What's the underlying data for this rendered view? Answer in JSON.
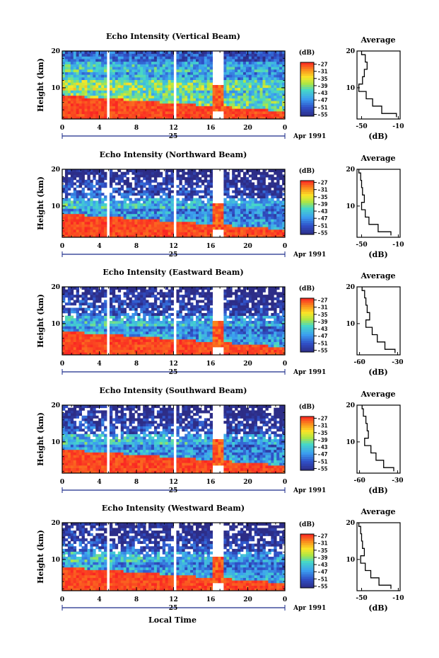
{
  "chart_data": {
    "type": "heatmap",
    "xlabel": "Local Time",
    "x_ticks": [
      "0",
      "4",
      "8",
      "12",
      "16",
      "20",
      "0"
    ],
    "date_day": "25",
    "date_month": "Apr 1991",
    "xlim": [
      0,
      24
    ],
    "ylabel": "Height (km)",
    "y_ticks": [
      "20",
      "10"
    ],
    "ylim": [
      1.5,
      20
    ],
    "colorbar_unit": "(dB)",
    "colorbar_ticks": [
      "-27",
      "-31",
      "-35",
      "-39",
      "-43",
      "-47",
      "-51",
      "-55"
    ],
    "colorbar_range_db": [
      -56,
      -26
    ],
    "avg_title": "Average",
    "avg_xlabel": "(dB)",
    "colors": {
      "max": "#ff2020",
      "min": "#303090",
      "grid": "#000000"
    },
    "panels": [
      {
        "title": "Echo Intensity (Vertical Beam)",
        "avg_x_ticks": [
          "-50",
          "-10"
        ],
        "avg_xlim": [
          -55,
          -8
        ],
        "avg_profile": {
          "height_km": [
            2,
            4,
            6,
            8,
            10,
            12,
            14,
            16,
            18,
            20
          ],
          "db": [
            -12,
            -28,
            -38,
            -45,
            -53,
            -49,
            -47,
            -44,
            -46,
            -50
          ]
        }
      },
      {
        "title": "Echo Intensity (Northward Beam)",
        "avg_x_ticks": [
          "-50",
          "-10"
        ],
        "avg_xlim": [
          -55,
          -8
        ],
        "avg_profile": {
          "height_km": [
            2,
            4,
            6,
            8,
            10,
            12,
            14,
            16,
            18,
            20
          ],
          "db": [
            -18,
            -32,
            -42,
            -46,
            -50,
            -47,
            -49,
            -50,
            -51,
            -53
          ]
        }
      },
      {
        "title": "Echo Intensity (Eastward Beam)",
        "avg_x_ticks": [
          "-60",
          "-30"
        ],
        "avg_xlim": [
          -62,
          -28
        ],
        "avg_profile": {
          "height_km": [
            2,
            4,
            6,
            8,
            10,
            12,
            14,
            16,
            18,
            20
          ],
          "db": [
            -32,
            -40,
            -46,
            -50,
            -55,
            -52,
            -54,
            -55,
            -56,
            -58
          ]
        }
      },
      {
        "title": "Echo Intensity (Southward Beam)",
        "avg_x_ticks": [
          "-60",
          "-30"
        ],
        "avg_xlim": [
          -62,
          -28
        ],
        "avg_profile": {
          "height_km": [
            2,
            4,
            6,
            8,
            10,
            12,
            14,
            16,
            18,
            20
          ],
          "db": [
            -33,
            -41,
            -47,
            -51,
            -56,
            -53,
            -54,
            -55,
            -57,
            -58
          ]
        }
      },
      {
        "title": "Echo Intensity (Westward Beam)",
        "avg_x_ticks": [
          "-50",
          "-10"
        ],
        "avg_xlim": [
          -55,
          -8
        ],
        "avg_profile": {
          "height_km": [
            2,
            4,
            6,
            8,
            10,
            12,
            14,
            16,
            18,
            20
          ],
          "db": [
            -18,
            -31,
            -40,
            -46,
            -51,
            -47,
            -49,
            -50,
            -51,
            -53
          ]
        }
      }
    ],
    "data_gaps_local_time": [
      [
        4.9,
        5.2
      ],
      [
        12.1,
        12.4
      ],
      [
        16.2,
        17.4
      ]
    ],
    "grid": false
  }
}
